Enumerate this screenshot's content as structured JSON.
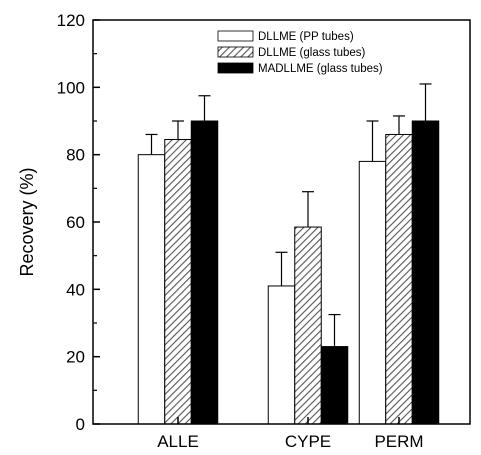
{
  "chart_data": {
    "type": "bar",
    "categories": [
      "ALLE",
      "CYPE",
      "PERM"
    ],
    "ylabel": "Recovery (%)",
    "xlabel": "",
    "ylim": [
      0,
      120
    ],
    "yticks": [
      0,
      20,
      40,
      60,
      80,
      100,
      120
    ],
    "series": [
      {
        "name": "DLLME (PP tubes)",
        "values": [
          80,
          41,
          78
        ],
        "errors": [
          6,
          10,
          12
        ],
        "fill": "white"
      },
      {
        "name": "DLLME (glass tubes)",
        "values": [
          84.5,
          58.5,
          86
        ],
        "errors": [
          5.5,
          10.5,
          5.5
        ],
        "fill": "hatch"
      },
      {
        "name": "MADLLME (glass tubes)",
        "values": [
          90,
          23,
          90
        ],
        "errors": [
          7.5,
          9.5,
          11
        ],
        "fill": "black"
      }
    ],
    "legend_position": "top-right"
  },
  "colors": {
    "axis": "#000000",
    "bar_stroke": "#000000",
    "black_fill": "#000000",
    "white_fill": "#ffffff",
    "hatch": "#555555"
  }
}
